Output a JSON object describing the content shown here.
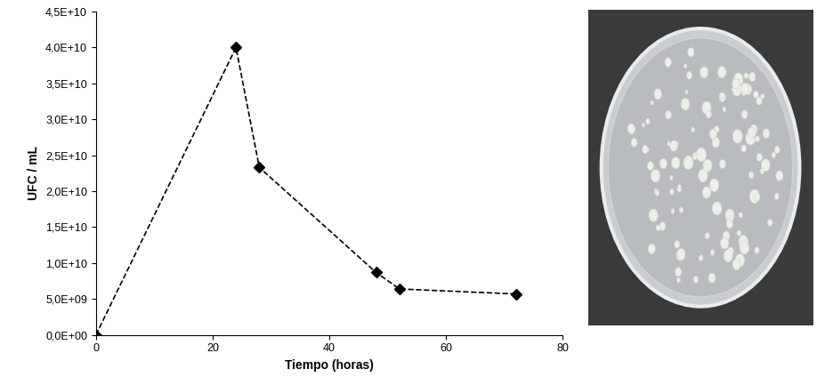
{
  "chart_data": {
    "type": "line",
    "x_label": "Tiempo (horas)",
    "y_label": "UFC / mL",
    "x": [
      0,
      24,
      28,
      48,
      52,
      72
    ],
    "values": [
      0,
      40000000000,
      23300000000,
      8700000000,
      6400000000,
      5700000000
    ],
    "color": "#000000",
    "marker": "diamond",
    "line_style": "dashed",
    "xlim": [
      0,
      80
    ],
    "xticks": [
      0,
      20,
      40,
      60,
      80
    ],
    "ylim": [
      0,
      45000000000
    ],
    "yticks": [
      {
        "value": 0,
        "label": "0,0E+00"
      },
      {
        "value": 5000000000,
        "label": "5,0E+09"
      },
      {
        "value": 10000000000,
        "label": "1,0E+10"
      },
      {
        "value": 15000000000,
        "label": "1,5E+10"
      },
      {
        "value": 20000000000,
        "label": "2,0E+10"
      },
      {
        "value": 25000000000,
        "label": "2,5E+10"
      },
      {
        "value": 30000000000,
        "label": "3,0E+10"
      },
      {
        "value": 35000000000,
        "label": "3,5E+10"
      },
      {
        "value": 40000000000,
        "label": "4,0E+10"
      },
      {
        "value": 45000000000,
        "label": "4,5E+10"
      }
    ],
    "grid": false
  }
}
